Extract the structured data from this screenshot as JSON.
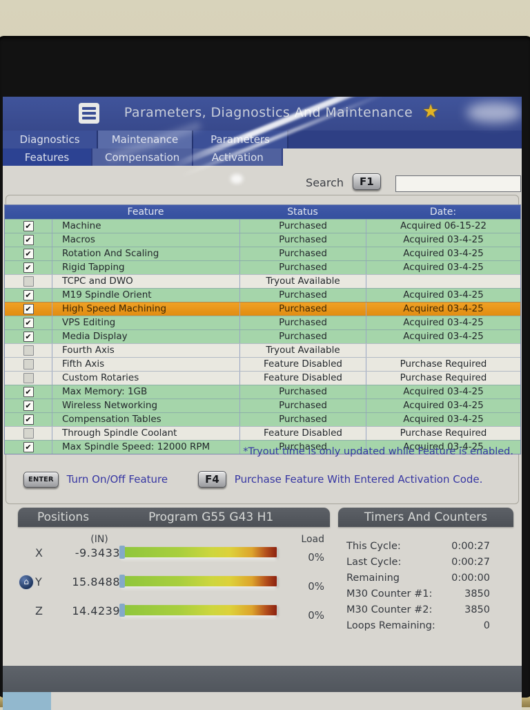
{
  "window": {
    "title": "Parameters, Diagnostics And Maintenance"
  },
  "tabs_primary": [
    {
      "label": "Diagnostics",
      "active": false
    },
    {
      "label": "Maintenance",
      "active": true
    },
    {
      "label": "Parameters",
      "active": false
    }
  ],
  "tabs_secondary": [
    {
      "label": "Features",
      "active": true
    },
    {
      "label": "Compensation",
      "active": false
    },
    {
      "label": "Activation",
      "active": false
    }
  ],
  "search": {
    "label": "Search",
    "key": "F1",
    "value": ""
  },
  "table": {
    "columns": [
      "Feature",
      "Status",
      "Date:"
    ],
    "rows": [
      {
        "checked": true,
        "feature": "Machine",
        "status": "Purchased",
        "date": "Acquired 06-15-22",
        "variant": "green"
      },
      {
        "checked": true,
        "feature": "Macros",
        "status": "Purchased",
        "date": "Acquired 03-4-25",
        "variant": "green"
      },
      {
        "checked": true,
        "feature": "Rotation And Scaling",
        "status": "Purchased",
        "date": "Acquired 03-4-25",
        "variant": "green"
      },
      {
        "checked": true,
        "feature": "Rigid Tapping",
        "status": "Purchased",
        "date": "Acquired 03-4-25",
        "variant": "green"
      },
      {
        "checked": false,
        "feature": "TCPC and DWO",
        "status": "Tryout Available",
        "date": "",
        "variant": "light"
      },
      {
        "checked": true,
        "feature": "M19 Spindle Orient",
        "status": "Purchased",
        "date": "Acquired 03-4-25",
        "variant": "green"
      },
      {
        "checked": true,
        "feature": "High Speed Machining",
        "status": "Purchased",
        "date": "Acquired 03-4-25",
        "variant": "selected"
      },
      {
        "checked": true,
        "feature": "VPS Editing",
        "status": "Purchased",
        "date": "Acquired 03-4-25",
        "variant": "green"
      },
      {
        "checked": true,
        "feature": "Media Display",
        "status": "Purchased",
        "date": "Acquired 03-4-25",
        "variant": "green"
      },
      {
        "checked": false,
        "feature": "Fourth Axis",
        "status": "Tryout Available",
        "date": "",
        "variant": "light"
      },
      {
        "checked": false,
        "feature": "Fifth Axis",
        "status": "Feature Disabled",
        "date": "Purchase Required",
        "variant": "light"
      },
      {
        "checked": false,
        "feature": "Custom Rotaries",
        "status": "Feature Disabled",
        "date": "Purchase Required",
        "variant": "light"
      },
      {
        "checked": true,
        "feature": "Max Memory: 1GB",
        "status": "Purchased",
        "date": "Acquired 03-4-25",
        "variant": "green"
      },
      {
        "checked": true,
        "feature": "Wireless Networking",
        "status": "Purchased",
        "date": "Acquired 03-4-25",
        "variant": "green"
      },
      {
        "checked": true,
        "feature": "Compensation Tables",
        "status": "Purchased",
        "date": "Acquired 03-4-25",
        "variant": "green"
      },
      {
        "checked": false,
        "feature": "Through Spindle Coolant",
        "status": "Feature Disabled",
        "date": "Purchase Required",
        "variant": "light"
      },
      {
        "checked": true,
        "feature": "Max Spindle Speed: 12000 RPM",
        "status": "Purchased",
        "date": "Acquired 03-4-25",
        "variant": "green"
      }
    ]
  },
  "note": "*Tryout time is only updated while Feature is enabled.",
  "actions": [
    {
      "key": "ENTER",
      "label": "Turn On/Off Feature"
    },
    {
      "key": "F4",
      "label": "Purchase Feature With Entered Activation Code."
    }
  ],
  "positions": {
    "title": "Positions",
    "program": "Program G55 G43 H1",
    "units": "(IN)",
    "load_header": "Load",
    "axes": [
      {
        "axis": "X",
        "value": "-9.3433",
        "load": "0%",
        "home": false
      },
      {
        "axis": "Y",
        "value": "15.8488",
        "load": "0%",
        "home": true
      },
      {
        "axis": "Z",
        "value": "14.4239",
        "load": "0%",
        "home": false
      }
    ]
  },
  "timers": {
    "title": "Timers And Counters",
    "rows": [
      {
        "label": "This Cycle:",
        "value": "0:00:27"
      },
      {
        "label": "Last Cycle:",
        "value": "0:00:27"
      },
      {
        "label": "Remaining",
        "value": "0:00:00"
      },
      {
        "label": "M30 Counter #1:",
        "value": "3850"
      },
      {
        "label": "M30 Counter #2:",
        "value": "3850"
      },
      {
        "label": "Loops Remaining:",
        "value": "0"
      }
    ]
  },
  "colors": {
    "header_blue": "#3a53a1",
    "row_purchased": "#a5d5aa",
    "row_available": "#e9e8e0",
    "row_selected": "#e8941c",
    "accent_text_blue": "#3636a2",
    "star_gold": "#e2b324"
  }
}
